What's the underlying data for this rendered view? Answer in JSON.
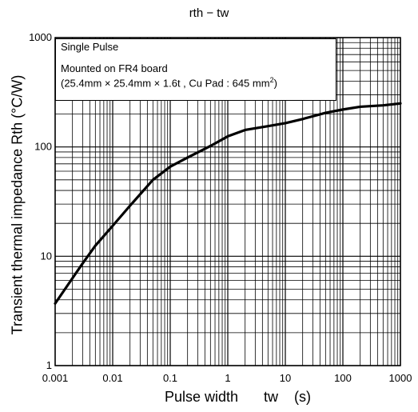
{
  "chart_data": {
    "type": "line",
    "title": "rth − tw",
    "xlabel": "Pulse width",
    "xlabel_symbol": "tw",
    "xlabel_unit": "(s)",
    "ylabel": "Transient thermal impedance Rth (°C/W)",
    "x_scale": "log",
    "y_scale": "log",
    "xlim": [
      0.001,
      1000
    ],
    "ylim": [
      1,
      1000
    ],
    "x_ticks": [
      "0.001",
      "0.01",
      "0.1",
      "1",
      "10",
      "100",
      "1000"
    ],
    "y_ticks": [
      "1",
      "10",
      "100",
      "1000"
    ],
    "grid": true,
    "series": [
      {
        "values": [
          [
            0.001,
            3.7
          ],
          [
            0.002,
            6.3
          ],
          [
            0.003,
            8.6
          ],
          [
            0.005,
            12.5
          ],
          [
            0.01,
            19
          ],
          [
            0.02,
            29
          ],
          [
            0.05,
            50
          ],
          [
            0.1,
            66
          ],
          [
            0.2,
            80
          ],
          [
            0.5,
            102
          ],
          [
            1,
            125
          ],
          [
            2,
            143
          ],
          [
            5,
            155
          ],
          [
            10,
            165
          ],
          [
            20,
            180
          ],
          [
            50,
            205
          ],
          [
            100,
            220
          ],
          [
            200,
            233
          ],
          [
            500,
            240
          ],
          [
            1000,
            250
          ]
        ]
      }
    ],
    "annotation": {
      "line1": "Single Pulse",
      "line2": "Mounted on FR4 board",
      "line3": "(25.4mm × 25.4mm × 1.6t , Cu Pad : 645 mm",
      "line3_sup": "2",
      "line3_end": ")"
    }
  }
}
